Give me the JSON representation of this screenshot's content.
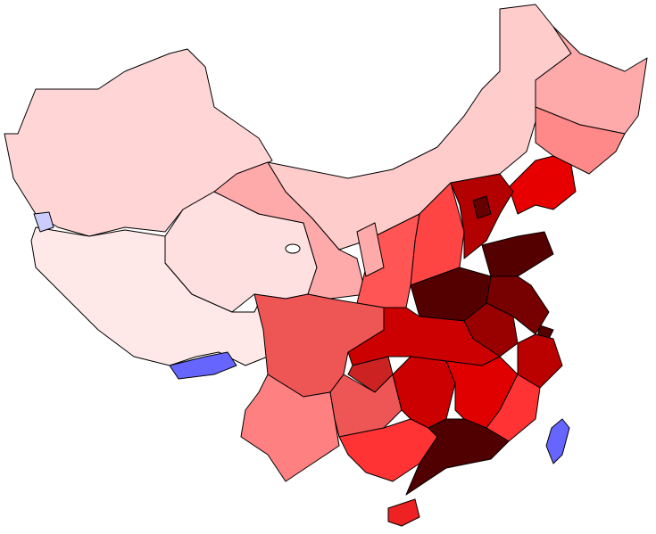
{
  "map": {
    "regions": [
      {
        "color": "#ffd5d5"
      },
      {
        "color": "#ffe8e8"
      },
      {
        "color": "#ffe0e0"
      },
      {
        "color": "#ffaaaa"
      },
      {
        "color": "#ffcccc"
      },
      {
        "color": "#ffaaaa"
      },
      {
        "color": "#ff8888"
      },
      {
        "color": "#e60000"
      },
      {
        "color": "#b30000"
      },
      {
        "color": "#660000"
      },
      {
        "color": "#ff4444"
      },
      {
        "color": "#ff5555"
      },
      {
        "color": "#ffaaaa"
      },
      {
        "color": "#550000"
      },
      {
        "color": "#550000"
      },
      {
        "color": "#770000"
      },
      {
        "color": "#990000"
      },
      {
        "color": "#550000"
      },
      {
        "color": "#bb0000"
      },
      {
        "color": "#cc0000"
      },
      {
        "color": "#cc2222"
      },
      {
        "color": "#ee5555"
      },
      {
        "color": "#ff8080"
      },
      {
        "color": "#ee5555"
      },
      {
        "color": "#cc0000"
      },
      {
        "color": "#e00000"
      },
      {
        "color": "#ff3333"
      },
      {
        "color": "#ff3333"
      },
      {
        "color": "#500000"
      },
      {
        "color": "#ee2222"
      },
      {
        "color": "#6666ff"
      },
      {
        "color": "#6666ff"
      },
      {
        "color": "#ccccff"
      }
    ]
  }
}
